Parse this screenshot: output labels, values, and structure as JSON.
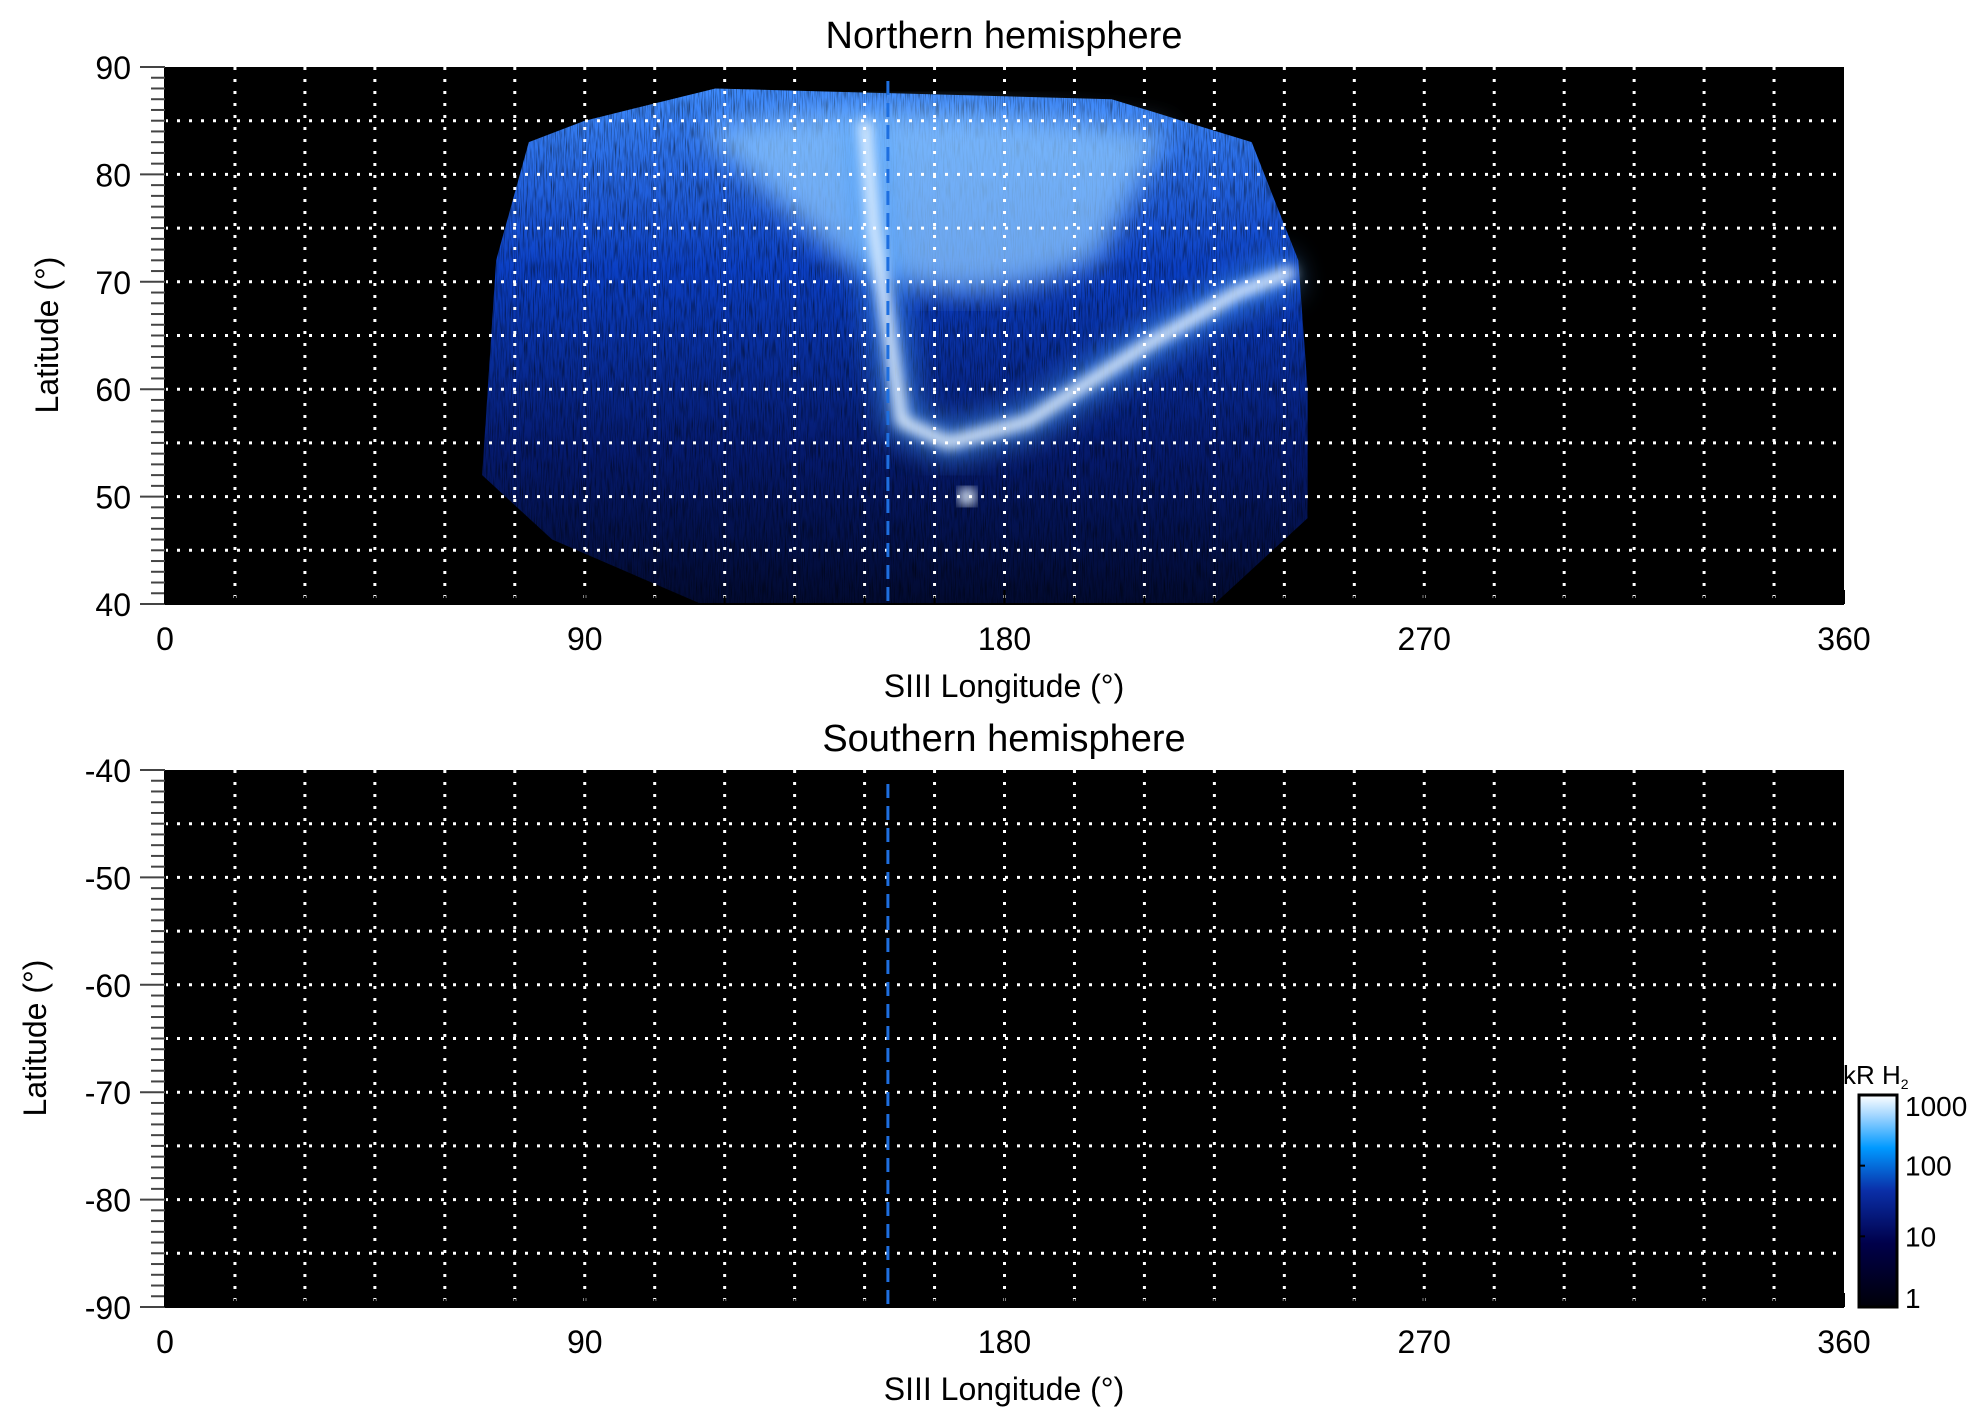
{
  "chart_data": [
    {
      "type": "heatmap",
      "title": "Northern hemisphere",
      "xlabel": "SIII Longitude (°)",
      "ylabel": "Latitude (°)",
      "xlim": [
        0,
        360
      ],
      "ylim": [
        40,
        90
      ],
      "xticks": [
        "0",
        "90",
        "180",
        "270",
        "360"
      ],
      "yticks": [
        "40",
        "50",
        "60",
        "70",
        "80",
        "90"
      ],
      "grid": true,
      "grid_spacing": {
        "longitude": 15,
        "latitude": 5
      },
      "background": "#000000",
      "reference_longitude": 155,
      "reference_line_color": "#1e6fe0",
      "emission_coverage": {
        "longitude_range": [
          68,
          243
        ],
        "latitude_range": [
          40,
          88
        ]
      },
      "features": [
        {
          "kind": "main emission arc",
          "points": [
            [
              150,
              85
            ],
            [
              152,
              75
            ],
            [
              156,
              63
            ],
            [
              158,
              57
            ],
            [
              168,
              55
            ],
            [
              185,
              57
            ],
            [
              210,
              64
            ],
            [
              230,
              69
            ],
            [
              242,
              71
            ]
          ]
        },
        {
          "kind": "bright spot",
          "longitude": 172,
          "latitude": 50
        }
      ]
    },
    {
      "type": "heatmap",
      "title": "Southern hemisphere",
      "xlabel": "SIII Longitude (°)",
      "ylabel": "Latitude (°)",
      "xlim": [
        0,
        360
      ],
      "ylim": [
        -90,
        -40
      ],
      "xticks": [
        "0",
        "90",
        "180",
        "270",
        "360"
      ],
      "yticks": [
        "-40",
        "-50",
        "-60",
        "-70",
        "-80",
        "-90"
      ],
      "grid": true,
      "grid_spacing": {
        "longitude": 15,
        "latitude": 5
      },
      "background": "#000000",
      "reference_longitude": 155,
      "reference_line_color": "#1e6fe0",
      "emission_coverage": null
    }
  ],
  "colorbar": {
    "label": "kR H",
    "label_subscript": "2",
    "scale": "log",
    "range": [
      1,
      1000
    ],
    "ticks": [
      "1",
      "10",
      "100",
      "1000"
    ],
    "colors": [
      "#000008",
      "#00004a",
      "#0a2fa8",
      "#0099ff",
      "#9fd4ff",
      "#ffffff"
    ]
  }
}
